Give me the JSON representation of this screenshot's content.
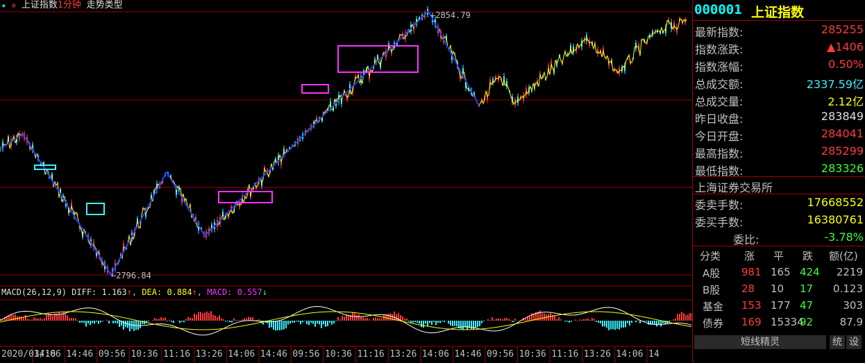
{
  "title": {
    "star": "★",
    "gear": "✲",
    "index_name": "上证指数",
    "period": "1分钟",
    "mode": "走势类型"
  },
  "price_labels": {
    "high": "2854.79",
    "low": "2796.84"
  },
  "macd": {
    "params": "MACD(26,12,9)",
    "diff_label": "DIFF: 1.163",
    "dea_label": "DEA: 0.884",
    "macd_label": "MACD: 0.557",
    "up_arrow": "↑",
    "down_arrow": "↓"
  },
  "time_axis": [
    "2020/03/16",
    "14:06",
    "14:46",
    "09:56",
    "10:36",
    "11:16",
    "13:26",
    "14:06",
    "14:46",
    "09:56",
    "10:36",
    "11:16",
    "13:26",
    "14:06",
    "14:46",
    "09:56",
    "10:36",
    "11:16",
    "13:26",
    "14:06",
    "14"
  ],
  "panel": {
    "code": "000001",
    "name": "上证指数",
    "stats": [
      {
        "label": "最新指数:",
        "value": "285255",
        "color": "red"
      },
      {
        "label": "指数涨跌:",
        "value": "▲1406",
        "color": "red"
      },
      {
        "label": "指数涨幅:",
        "value": "0.50%",
        "color": "red"
      },
      {
        "label": "总成交额:",
        "value": "2337.59亿",
        "color": "cyan"
      },
      {
        "label": "总成交量:",
        "value": "2.12亿",
        "color": "yellow"
      },
      {
        "label": "昨日收盘:",
        "value": "283849",
        "color": "white"
      },
      {
        "label": "今日开盘:",
        "value": "284041",
        "color": "red"
      },
      {
        "label": "最高指数:",
        "value": "285299",
        "color": "red"
      },
      {
        "label": "最低指数:",
        "value": "283326",
        "color": "green"
      }
    ],
    "exchange": "上海证券交易所",
    "orders": [
      {
        "label": "委卖手数:",
        "value": "17668552",
        "color": "yellow"
      },
      {
        "label": "委买手数:",
        "value": "16380761",
        "color": "yellow"
      },
      {
        "label": "委比:",
        "value": "-3.78%",
        "color": "green"
      }
    ],
    "table_headers": [
      "分类",
      "涨",
      "平",
      "跌",
      "额(亿)"
    ],
    "table_rows": [
      {
        "cat": "A股",
        "up": "981",
        "flat": "165",
        "down": "424",
        "amt": "2219"
      },
      {
        "cat": "B股",
        "up": "28",
        "flat": "10",
        "down": "17",
        "amt": "0.123"
      },
      {
        "cat": "基金",
        "up": "153",
        "flat": "177",
        "down": "47",
        "amt": "303"
      },
      {
        "cat": "债券",
        "up": "169",
        "flat": "15334",
        "down": "92",
        "amt": "87.9"
      }
    ],
    "buttons": {
      "main": "短线精灵",
      "tong": "统",
      "she": "设"
    }
  },
  "colors": {
    "bg": "#000000",
    "grid": "#a00000",
    "up": "#ff3b3b",
    "down": "#3ff0ff",
    "trend": "#1a3cff",
    "pivot_box": "#ff30ff",
    "small_box": "#3ff0ff",
    "price_line": "#ffff00"
  }
}
